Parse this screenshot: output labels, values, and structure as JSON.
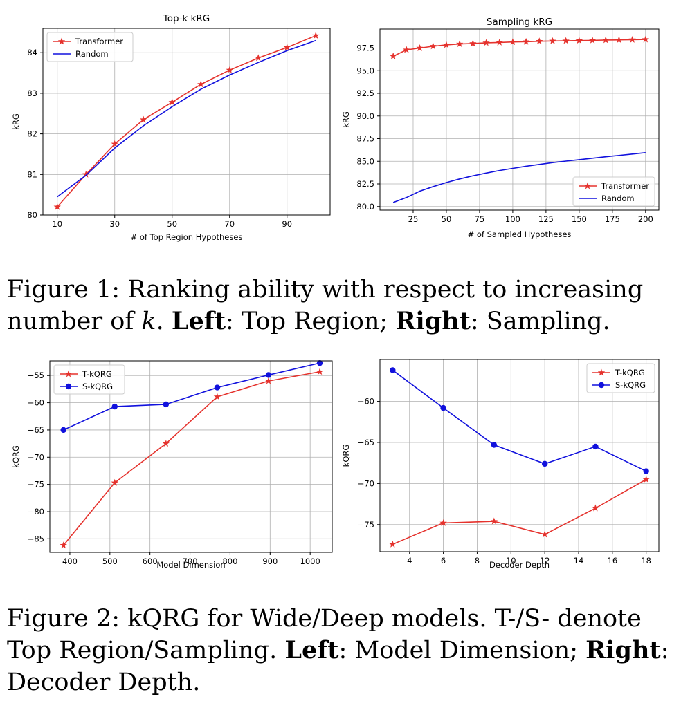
{
  "chart_data": [
    {
      "type": "line",
      "title": "Top-k kRG",
      "xlabel": "# of Top Region Hypotheses",
      "ylabel": "kRG",
      "xlim": [
        5,
        105
      ],
      "ylim": [
        80,
        84.6
      ],
      "xticks": [
        10,
        30,
        50,
        70,
        90
      ],
      "yticks": [
        80,
        81,
        82,
        83,
        84
      ],
      "grid": true,
      "legend_position": "upper left",
      "series": [
        {
          "name": "Transformer",
          "color": "#e5322d",
          "marker": "star",
          "x": [
            10,
            20,
            30,
            40,
            50,
            60,
            70,
            80,
            90,
            100
          ],
          "y": [
            80.2,
            81.0,
            81.75,
            82.35,
            82.78,
            83.22,
            83.57,
            83.87,
            84.13,
            84.42
          ]
        },
        {
          "name": "Random",
          "color": "#1111dd",
          "marker": "none",
          "x": [
            10,
            20,
            30,
            40,
            50,
            60,
            70,
            80,
            90,
            100
          ],
          "y": [
            80.45,
            80.98,
            81.65,
            82.2,
            82.67,
            83.1,
            83.45,
            83.76,
            84.05,
            84.3
          ]
        }
      ]
    },
    {
      "type": "line",
      "title": "Sampling kRG",
      "xlabel": "# of Sampled Hypotheses",
      "ylabel": "kRG",
      "xlim": [
        0,
        210
      ],
      "ylim": [
        79.6,
        99.6
      ],
      "xticks": [
        25,
        50,
        75,
        100,
        125,
        150,
        175,
        200
      ],
      "yticks": [
        80.0,
        82.5,
        85.0,
        87.5,
        90.0,
        92.5,
        95.0,
        97.5
      ],
      "ytick_labels": [
        "80.0",
        "82.5",
        "85.0",
        "87.5",
        "90.0",
        "92.5",
        "95.0",
        "97.5"
      ],
      "grid": true,
      "legend_position": "lower right",
      "series": [
        {
          "name": "Transformer",
          "color": "#e5322d",
          "marker": "star",
          "x": [
            10,
            20,
            30,
            40,
            50,
            60,
            70,
            80,
            90,
            100,
            110,
            120,
            130,
            140,
            150,
            160,
            170,
            180,
            190,
            200
          ],
          "y": [
            96.6,
            97.3,
            97.5,
            97.7,
            97.85,
            97.95,
            98.0,
            98.08,
            98.12,
            98.17,
            98.2,
            98.25,
            98.28,
            98.3,
            98.33,
            98.35,
            98.38,
            98.4,
            98.42,
            98.45
          ]
        },
        {
          "name": "Random",
          "color": "#1111dd",
          "marker": "none",
          "x": [
            10,
            20,
            30,
            40,
            50,
            60,
            70,
            80,
            90,
            100,
            110,
            120,
            130,
            140,
            150,
            160,
            170,
            180,
            190,
            200
          ],
          "y": [
            80.45,
            81.0,
            81.7,
            82.2,
            82.65,
            83.05,
            83.4,
            83.7,
            83.98,
            84.22,
            84.45,
            84.65,
            84.85,
            85.02,
            85.18,
            85.34,
            85.5,
            85.65,
            85.8,
            85.95
          ]
        }
      ]
    },
    {
      "type": "line",
      "title": "",
      "xlabel": "Model Dimension",
      "ylabel": "kQRG",
      "xlim": [
        350,
        1055
      ],
      "ylim": [
        -87.5,
        -52.3
      ],
      "xticks": [
        400,
        500,
        600,
        700,
        800,
        900,
        1000
      ],
      "yticks": [
        -85,
        -80,
        -75,
        -70,
        -65,
        -60,
        -55
      ],
      "ytick_labels": [
        "−85",
        "−80",
        "−75",
        "−70",
        "−65",
        "−60",
        "−55"
      ],
      "grid": true,
      "legend_position": "upper left",
      "series": [
        {
          "name": "T-kQRG",
          "color": "#e5322d",
          "marker": "star",
          "x": [
            384,
            512,
            640,
            768,
            896,
            1024
          ],
          "y": [
            -86.2,
            -74.7,
            -67.5,
            -58.9,
            -56.0,
            -54.3
          ]
        },
        {
          "name": "S-kQRG",
          "color": "#1111dd",
          "marker": "circle",
          "x": [
            384,
            512,
            640,
            768,
            896,
            1024
          ],
          "y": [
            -65.0,
            -60.7,
            -60.3,
            -57.2,
            -54.9,
            -52.7
          ]
        }
      ]
    },
    {
      "type": "line",
      "title": "",
      "xlabel": "Decoder Depth",
      "ylabel": "kQRG",
      "xlim": [
        2.25,
        18.75
      ],
      "ylim": [
        -78.3,
        -54.9
      ],
      "xticks": [
        4,
        6,
        8,
        10,
        12,
        14,
        16,
        18
      ],
      "yticks": [
        -75,
        -70,
        -65,
        -60
      ],
      "ytick_labels": [
        "−75",
        "−70",
        "−65",
        "−60"
      ],
      "grid": true,
      "legend_position": "upper right",
      "series": [
        {
          "name": "T-kQRG",
          "color": "#e5322d",
          "marker": "star",
          "x": [
            3,
            6,
            9,
            12,
            15,
            18
          ],
          "y": [
            -77.4,
            -74.8,
            -74.6,
            -76.2,
            -73.0,
            -69.5
          ]
        },
        {
          "name": "S-kQRG",
          "color": "#1111dd",
          "marker": "circle",
          "x": [
            3,
            6,
            9,
            12,
            15,
            18
          ],
          "y": [
            -56.2,
            -60.8,
            -65.3,
            -67.6,
            -65.5,
            -68.5
          ]
        }
      ]
    }
  ],
  "captions": {
    "fig1": {
      "prefix": "Figure 1:  Ranking ability with respect to increasing number of ",
      "k": "k",
      "dot": ". ",
      "left_label": "Left",
      "left_text": ": Top Region; ",
      "right_label": "Right",
      "right_text": ": Sampling."
    },
    "fig2": {
      "prefix": "Figure 2: kQRG for Wide/Deep models. T-/S- denote Top Region/Sampling. ",
      "left_label": "Left",
      "left_text": ": Model Dimension; ",
      "right_label": "Right",
      "right_text": ": Decoder Depth."
    }
  }
}
